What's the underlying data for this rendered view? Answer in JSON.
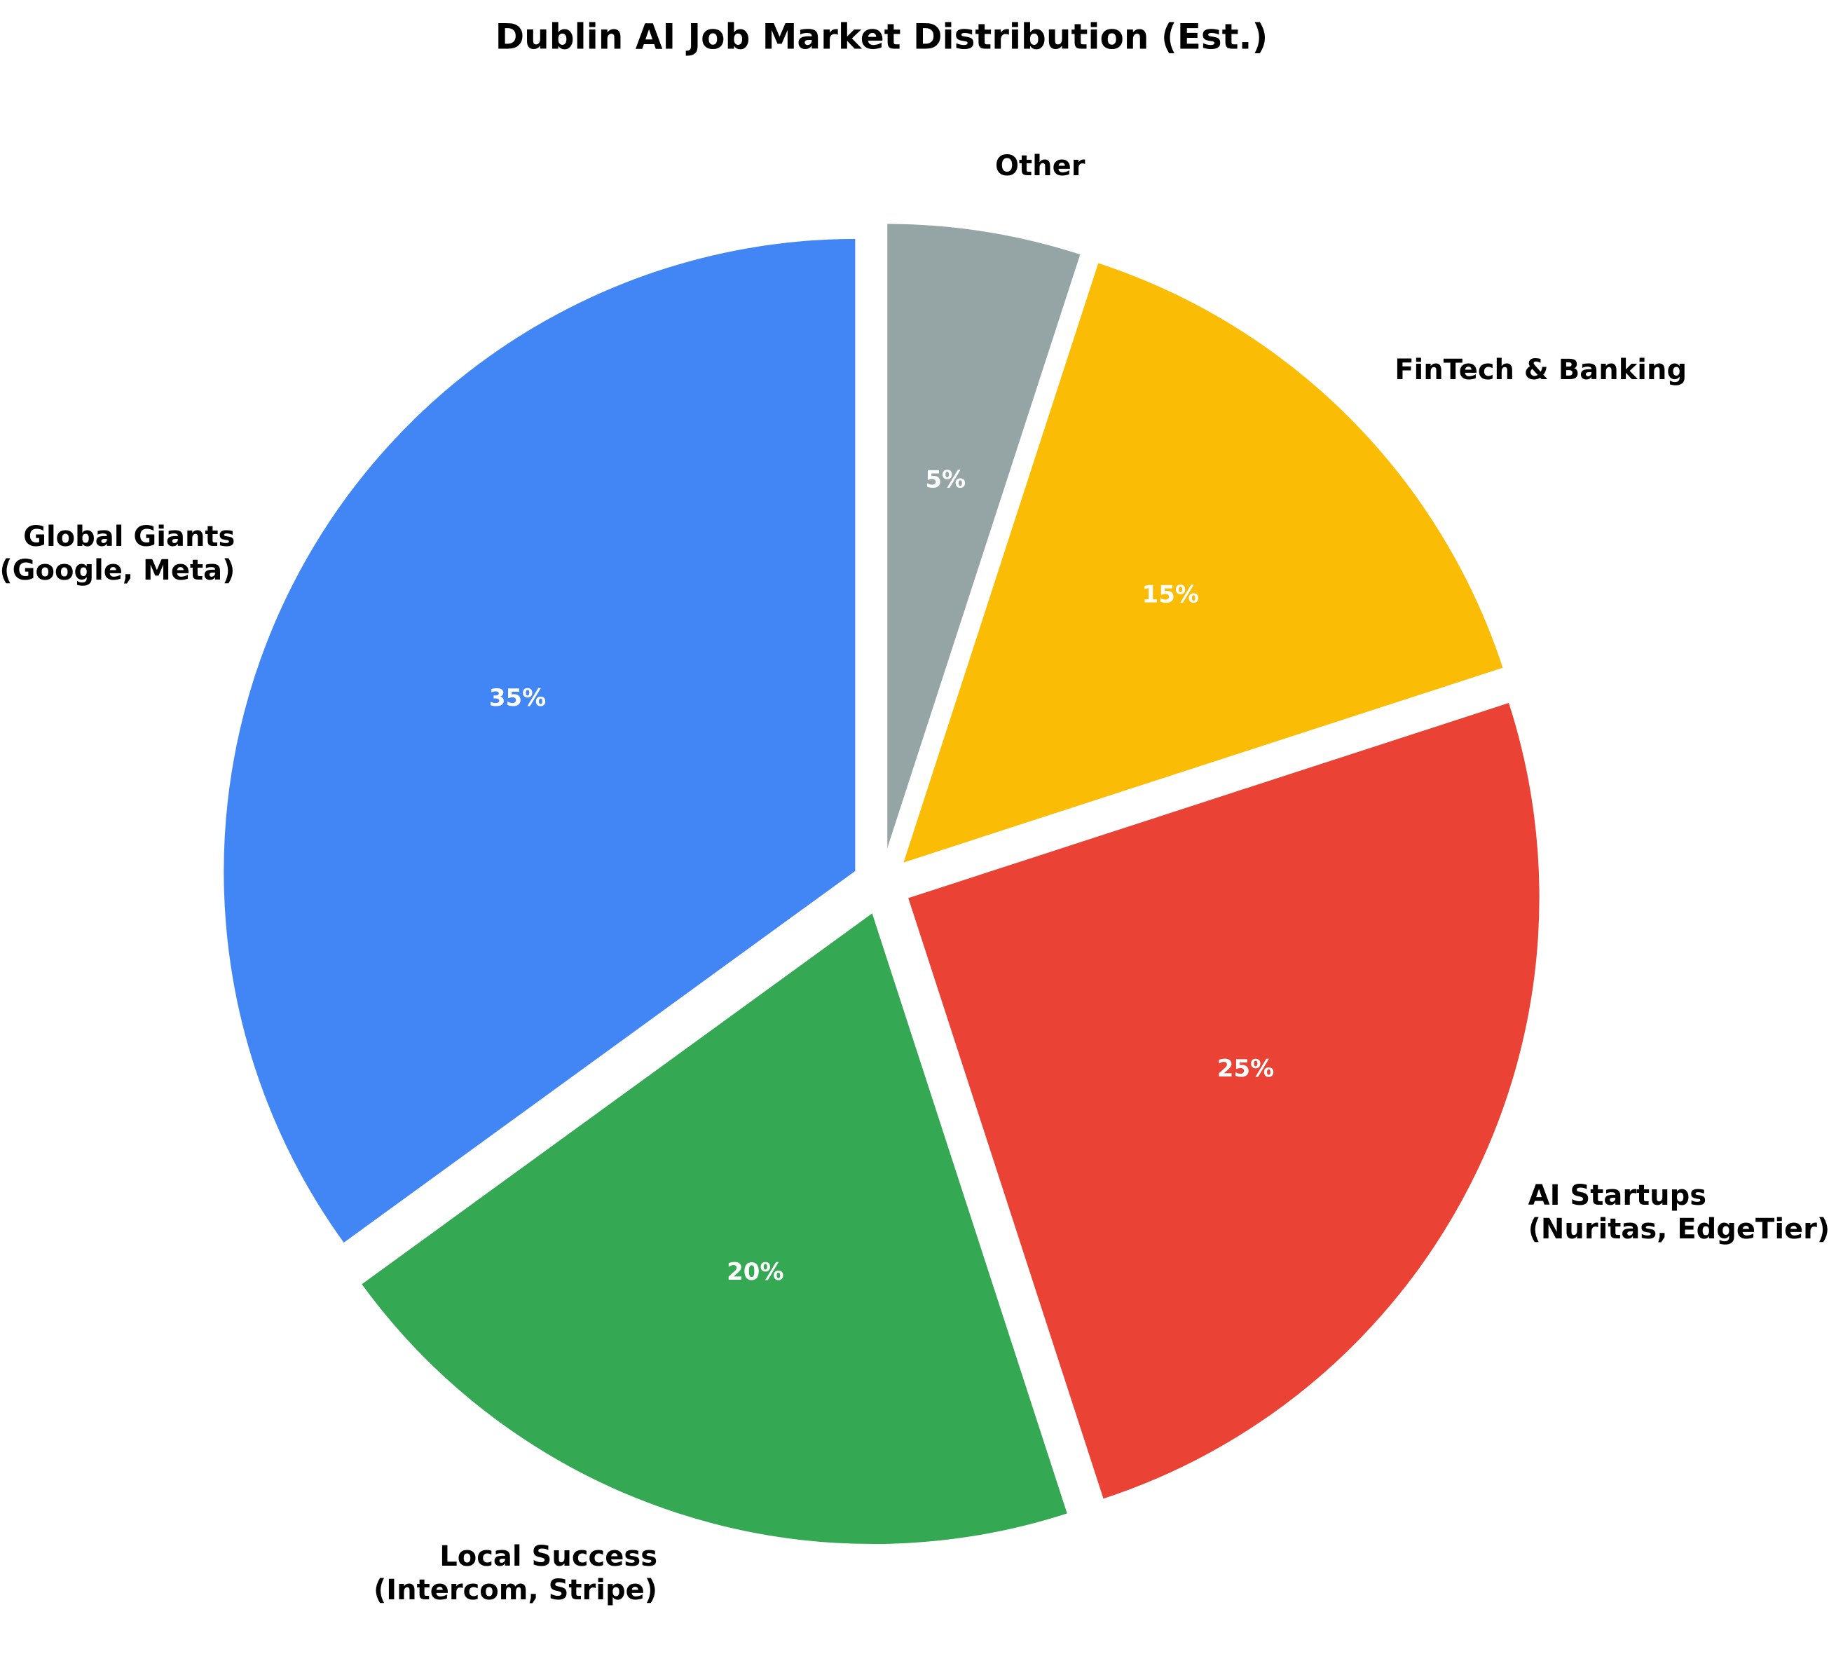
{
  "chart_data": {
    "type": "pie",
    "title": "Dublin AI Job Market Distribution (Est.)",
    "categories": [
      "Global Giants\n(Google, Meta)",
      "Local Success\n(Intercom, Stripe)",
      "AI Startups\n(Nuritas, EdgeTier)",
      "FinTech & Banking",
      "Other"
    ],
    "values": [
      35,
      20,
      25,
      15,
      5
    ],
    "value_labels": [
      "35%",
      "20%",
      "25%",
      "15%",
      "5%"
    ],
    "colors": [
      "#4285f4",
      "#34a853",
      "#ea4335",
      "#fbbc05",
      "#95a5a6"
    ],
    "start_angle": 90,
    "direction": "counterclockwise"
  }
}
